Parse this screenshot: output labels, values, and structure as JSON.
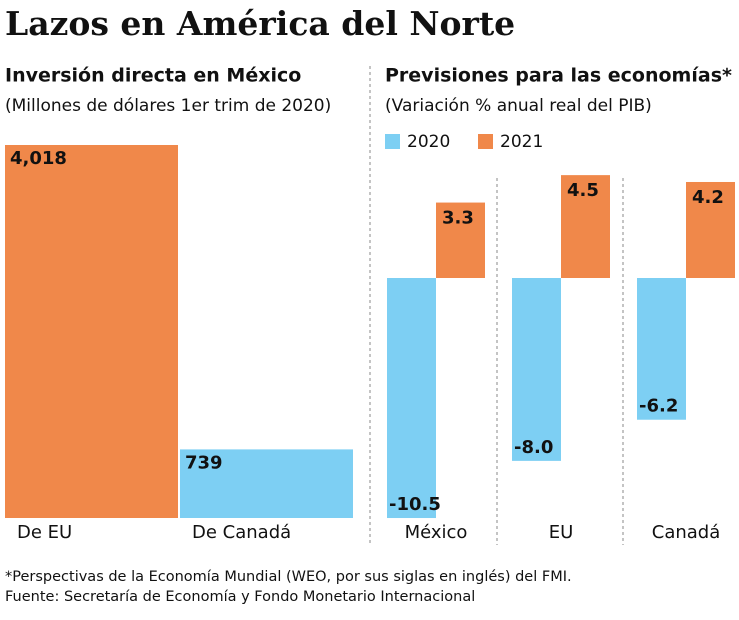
{
  "title": "Lazos en América del Norte",
  "footnote": "*Perspectivas de la Economía Mundial (WEO, por sus siglas en inglés) del FMI.",
  "source": "Fuente: Secretaría de Economía y Fondo Monetario Internacional",
  "chart_data": [
    {
      "type": "bar",
      "title": "Inversión directa en México",
      "subtitle": "(Millones de dólares 1er trim de 2020)",
      "categories": [
        "De EU",
        "De Canadá"
      ],
      "values": [
        4018,
        739
      ],
      "value_labels": [
        "4,018",
        "739"
      ],
      "colors": [
        "#f0884a",
        "#7dcff3"
      ]
    },
    {
      "type": "grouped_bar",
      "title": "Previsiones para las economías*",
      "subtitle": "(Variación % anual real del PIB)",
      "categories": [
        "México",
        "EU",
        "Canadá"
      ],
      "series": [
        {
          "name": "2020",
          "color": "#7dcff3",
          "values": [
            -10.5,
            -8.0,
            -6.2
          ],
          "value_labels": [
            "-10.5",
            "-8.0",
            "-6.2"
          ]
        },
        {
          "name": "2021",
          "color": "#f0884a",
          "values": [
            3.3,
            4.5,
            4.2
          ]
        }
      ]
    }
  ]
}
